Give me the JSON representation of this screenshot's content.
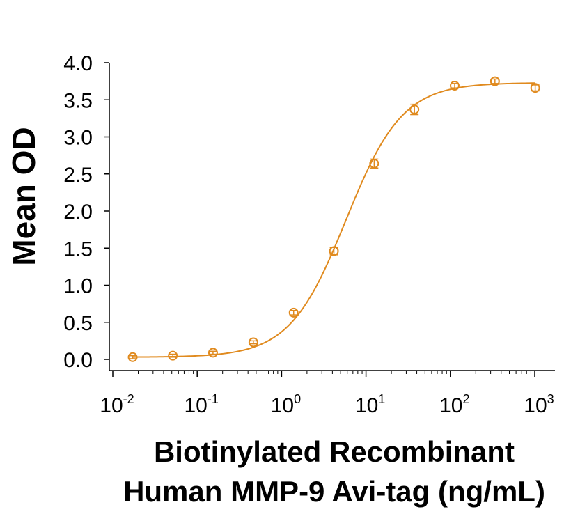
{
  "chart_data": {
    "type": "scatter",
    "title": "",
    "xlabel_lines": [
      "Biotinylated Recombinant",
      "Human MMP-9 Avi-tag (ng/mL)"
    ],
    "ylabel": "Mean OD",
    "x_scale": "log",
    "xlim": [
      0.01,
      1000
    ],
    "ylim": [
      0,
      4.0
    ],
    "x_ticks": [
      {
        "base": "10",
        "exp": "-2",
        "value": 0.01
      },
      {
        "base": "10",
        "exp": "-1",
        "value": 0.1
      },
      {
        "base": "10",
        "exp": "0",
        "value": 1
      },
      {
        "base": "10",
        "exp": "1",
        "value": 10
      },
      {
        "base": "10",
        "exp": "2",
        "value": 100
      },
      {
        "base": "10",
        "exp": "3",
        "value": 1000
      }
    ],
    "y_ticks": [
      "0.0",
      "0.5",
      "1.0",
      "1.5",
      "2.0",
      "2.5",
      "3.0",
      "3.5",
      "4.0"
    ],
    "grid": false,
    "legend": "none",
    "color": "#E08A1E",
    "series": [
      {
        "points": [
          {
            "x": 0.0172,
            "y": 0.03,
            "err": 0.02
          },
          {
            "x": 0.0514,
            "y": 0.05,
            "err": 0.02
          },
          {
            "x": 0.154,
            "y": 0.09,
            "err": 0.02
          },
          {
            "x": 0.463,
            "y": 0.23,
            "err": 0.02
          },
          {
            "x": 1.39,
            "y": 0.63,
            "err": 0.03
          },
          {
            "x": 4.17,
            "y": 1.46,
            "err": 0.05
          },
          {
            "x": 12.5,
            "y": 2.64,
            "err": 0.06
          },
          {
            "x": 37.5,
            "y": 3.37,
            "err": 0.07
          },
          {
            "x": 112.5,
            "y": 3.69,
            "err": 0.03
          },
          {
            "x": 337.5,
            "y": 3.75,
            "err": 0.03
          },
          {
            "x": 1012.5,
            "y": 3.66,
            "err": 0.04
          }
        ],
        "fit": {
          "model": "4PL",
          "bottom": 0.03,
          "top": 3.73,
          "ec50": 5.8,
          "hill": 1.3
        }
      }
    ]
  }
}
